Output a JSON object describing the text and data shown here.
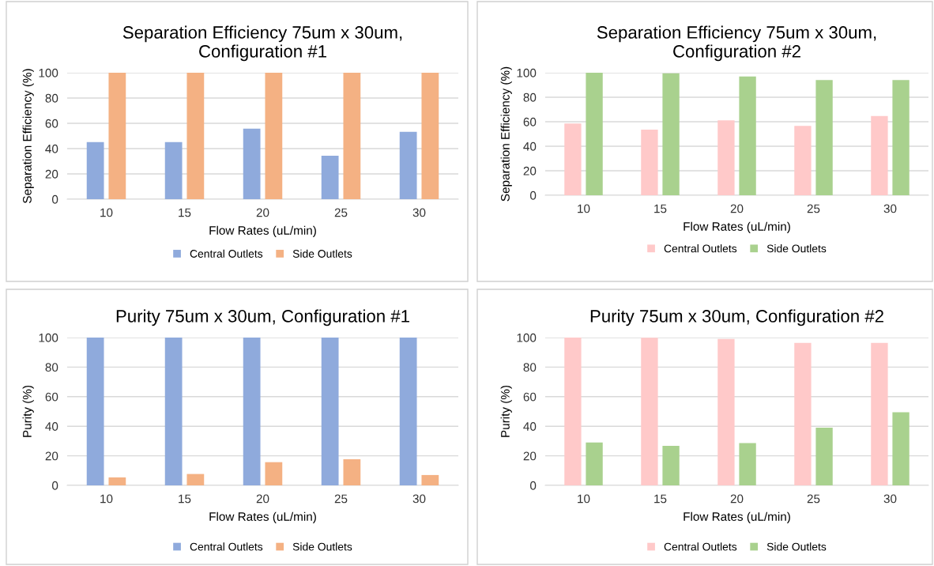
{
  "chart_data": [
    {
      "type": "bar",
      "title": "Separation Efficiency 75um x 30um,\nConfiguration #1",
      "xlabel": "Flow Rates (uL/min)",
      "ylabel": "Separation Efficiency (%)",
      "categories": [
        "10",
        "15",
        "20",
        "25",
        "30"
      ],
      "ylim": [
        0,
        100
      ],
      "yticks": [
        0,
        20,
        40,
        60,
        80,
        100
      ],
      "grid": "y",
      "legend": "bottom",
      "series": [
        {
          "name": "Central Outlets",
          "color": "#8faadc",
          "values": [
            45.2,
            45.2,
            55.8,
            34.4,
            53.3
          ]
        },
        {
          "name": "Side Outlets",
          "color": "#f4b183",
          "values": [
            100,
            100,
            100,
            100,
            100
          ]
        }
      ]
    },
    {
      "type": "bar",
      "title": "Separation Efficiency 75um x 30um,\nConfiguration #2",
      "xlabel": "Flow Rates (uL/min)",
      "ylabel": "Separation Efficiency (%)",
      "categories": [
        "10",
        "15",
        "20",
        "25",
        "30"
      ],
      "ylim": [
        0,
        100
      ],
      "yticks": [
        0,
        20,
        40,
        60,
        80,
        100
      ],
      "grid": "y",
      "legend": "bottom",
      "series": [
        {
          "name": "Central Outlets",
          "color": "#ffc9c9",
          "values": [
            58.6,
            53.6,
            61.1,
            56.6,
            64.6
          ]
        },
        {
          "name": "Side Outlets",
          "color": "#a9d18e",
          "values": [
            100,
            99.5,
            97.0,
            94.0,
            94.0
          ]
        }
      ]
    },
    {
      "type": "bar",
      "title": "Purity 75um x 30um, Configuration #1",
      "xlabel": "Flow Rates (uL/min)",
      "ylabel": "Purity (%)",
      "categories": [
        "10",
        "15",
        "20",
        "25",
        "30"
      ],
      "ylim": [
        0,
        100
      ],
      "yticks": [
        0,
        20,
        40,
        60,
        80,
        100
      ],
      "grid": "y",
      "legend": "bottom",
      "series": [
        {
          "name": "Central Outlets",
          "color": "#8faadc",
          "values": [
            100,
            100,
            100,
            100,
            100
          ]
        },
        {
          "name": "Side Outlets",
          "color": "#f4b183",
          "values": [
            5.4,
            7.7,
            15.7,
            17.7,
            7.0
          ]
        }
      ]
    },
    {
      "type": "bar",
      "title": "Purity 75um x 30um, Configuration #2",
      "xlabel": "Flow Rates (uL/min)",
      "ylabel": "Purity (%)",
      "categories": [
        "10",
        "15",
        "20",
        "25",
        "30"
      ],
      "ylim": [
        0,
        100
      ],
      "yticks": [
        0,
        20,
        40,
        60,
        80,
        100
      ],
      "grid": "y",
      "legend": "bottom",
      "series": [
        {
          "name": "Central Outlets",
          "color": "#ffc9c9",
          "values": [
            100,
            99.8,
            99.0,
            96.4,
            96.4
          ]
        },
        {
          "name": "Side Outlets",
          "color": "#a9d18e",
          "values": [
            29.0,
            26.7,
            28.6,
            39.1,
            49.4
          ]
        }
      ]
    }
  ]
}
